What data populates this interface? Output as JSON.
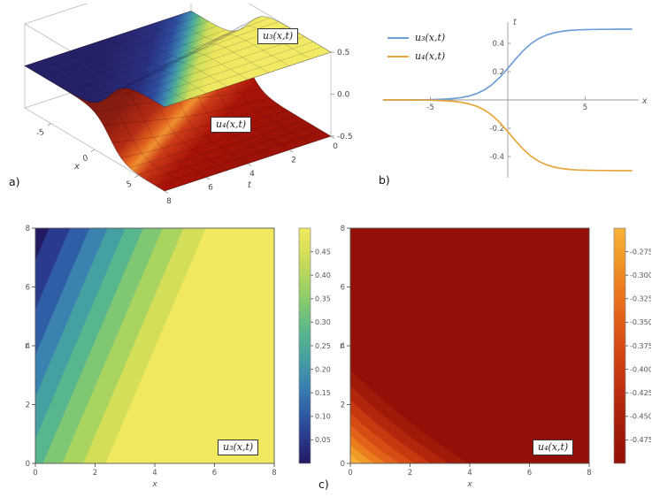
{
  "page": {
    "background": "#ffffff"
  },
  "panel_labels": {
    "a": "a)",
    "b": "b)",
    "c": "c)"
  },
  "labels": {
    "u3": "u₃(x,t)",
    "u4": "u₄(x,t)",
    "x_axis": "x",
    "t_axis": "t"
  },
  "chart_data": [
    {
      "type": "surface3d",
      "panel": "a",
      "xlabel": "x",
      "tlabel": "t",
      "x_range": [
        -8,
        8
      ],
      "t_range": [
        0,
        8
      ],
      "z_range": [
        -0.5,
        0.5
      ],
      "x_ticks": [
        -5,
        0,
        5
      ],
      "t_ticks": [
        8,
        6,
        4,
        2,
        0
      ],
      "z_ticks": [
        "0.5",
        "0.0",
        "-0.5"
      ],
      "mesh": true,
      "surfaces": [
        {
          "name": "u₃(x,t)",
          "z_min": 0,
          "z_max": 0.5,
          "amplitude": 0.25,
          "steepness": 0.6,
          "speed": 0.4,
          "offset": 1.5,
          "sign": 1
        },
        {
          "name": "u₄(x,t)",
          "z_min": -0.5,
          "z_max": 0,
          "amplitude": 0.25,
          "steepness": 0.6,
          "speed": 0.4,
          "offset": 1.5,
          "sign": -1
        }
      ]
    },
    {
      "type": "line",
      "panel": "b",
      "xlabel": "x",
      "axis_top_label": "t",
      "xlim": [
        -8,
        8.6
      ],
      "ylim": [
        -0.55,
        0.55
      ],
      "x_ticks": [
        -5,
        5
      ],
      "y_ticks": [
        0.4,
        0.2,
        -0.2,
        -0.4
      ],
      "legend_position": "top-left",
      "x": [
        -8,
        -7.5,
        -7,
        -6.5,
        -6,
        -5.5,
        -5,
        -4.5,
        -4,
        -3.5,
        -3,
        -2.5,
        -2,
        -1.5,
        -1,
        -0.5,
        0,
        0.5,
        1,
        1.5,
        2,
        2.5,
        3,
        3.5,
        4,
        4.5,
        5,
        5.5,
        6,
        6.5,
        7,
        7.5,
        8
      ],
      "series": [
        {
          "name": "u₃(x,t)",
          "color": "#6f9fd8",
          "values": [
            0.0,
            0.0,
            0.0,
            0.0,
            0.001,
            0.001,
            0.002,
            0.004,
            0.006,
            0.01,
            0.017,
            0.028,
            0.045,
            0.072,
            0.11,
            0.162,
            0.224,
            0.289,
            0.349,
            0.398,
            0.434,
            0.459,
            0.475,
            0.485,
            0.491,
            0.495,
            0.497,
            0.498,
            0.499,
            0.499,
            0.5,
            0.5,
            0.5
          ]
        },
        {
          "name": "u₄(x,t)",
          "color": "#e5a63c",
          "values": [
            0.0,
            0.0,
            0.0,
            0.0,
            -0.001,
            -0.001,
            -0.002,
            -0.004,
            -0.006,
            -0.01,
            -0.017,
            -0.028,
            -0.045,
            -0.072,
            -0.11,
            -0.162,
            -0.224,
            -0.289,
            -0.349,
            -0.398,
            -0.434,
            -0.459,
            -0.475,
            -0.485,
            -0.491,
            -0.495,
            -0.497,
            -0.498,
            -0.499,
            -0.499,
            -0.5,
            -0.5,
            -0.5
          ]
        }
      ]
    },
    {
      "type": "contour",
      "style": "diagonal",
      "panel": "c-left",
      "name": "u₃(x,t)",
      "xlabel": "x",
      "ylabel": "t",
      "xlim": [
        0,
        8
      ],
      "ylim": [
        0,
        8
      ],
      "axis_ticks": [
        0,
        2,
        4,
        6,
        8
      ],
      "levels": [
        0.05,
        0.1,
        0.15,
        0.2,
        0.25,
        0.3,
        0.35,
        0.4,
        0.45
      ],
      "band_colors": [
        "#221a63",
        "#2a3a8c",
        "#2f5ea6",
        "#3a82b0",
        "#45a0a2",
        "#57b68d",
        "#7fc772",
        "#a9d45f",
        "#d4de58",
        "#f0e95f"
      ],
      "boundaries_x_at_t0": [
        -2.9,
        -2.2,
        -1.55,
        -0.95,
        -0.35,
        0.25,
        0.9,
        1.6,
        2.35
      ],
      "dx_per_dt": 0.42,
      "colorbar": {
        "ticks": [
          "0.45",
          "0.40",
          "0.35",
          "0.30",
          "0.25",
          "0.20",
          "0.15",
          "0.10",
          "0.05"
        ]
      }
    },
    {
      "type": "contour",
      "style": "corner",
      "panel": "c-right",
      "name": "u₄(x,t)",
      "xlabel": "x",
      "ylabel": "t",
      "xlim": [
        0,
        8
      ],
      "ylim": [
        0,
        8
      ],
      "axis_ticks": [
        0,
        2,
        4,
        6,
        8
      ],
      "levels": [
        -0.275,
        -0.3,
        -0.325,
        -0.35,
        -0.375,
        -0.4,
        -0.425,
        -0.45,
        -0.475
      ],
      "band_colors": [
        "#f7b139",
        "#f29a28",
        "#ec7d1f",
        "#e36219",
        "#d74b14",
        "#c73710",
        "#b3260c",
        "#a01909",
        "#931009"
      ],
      "corner_x_at_t0": [
        0.4,
        0.8,
        1.2,
        1.65,
        2.15,
        2.7,
        3.3,
        3.95
      ],
      "corner_t_factor": 0.8,
      "colorbar": {
        "ticks": [
          "-0.275",
          "-0.300",
          "-0.325",
          "-0.350",
          "-0.375",
          "-0.400",
          "-0.425",
          "-0.450",
          "-0.475"
        ]
      }
    }
  ]
}
